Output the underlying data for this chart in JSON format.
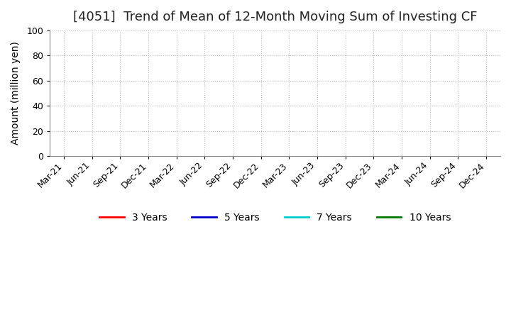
{
  "title": "[4051]  Trend of Mean of 12-Month Moving Sum of Investing CF",
  "ylabel": "Amount (million yen)",
  "ylim": [
    0,
    100
  ],
  "yticks": [
    0,
    20,
    40,
    60,
    80,
    100
  ],
  "background_color": "#ffffff",
  "plot_bg_color": "#ffffff",
  "grid_color": "#bbbbbb",
  "x_labels": [
    "Mar-21",
    "Jun-21",
    "Sep-21",
    "Dec-21",
    "Mar-22",
    "Jun-22",
    "Sep-22",
    "Dec-22",
    "Mar-23",
    "Jun-23",
    "Sep-23",
    "Dec-23",
    "Mar-24",
    "Jun-24",
    "Sep-24",
    "Dec-24"
  ],
  "legend_entries": [
    {
      "label": "3 Years",
      "color": "#ff0000"
    },
    {
      "label": "5 Years",
      "color": "#0000cc"
    },
    {
      "label": "7 Years",
      "color": "#00cccc"
    },
    {
      "label": "10 Years",
      "color": "#007700"
    }
  ],
  "title_fontsize": 13,
  "axis_label_fontsize": 10,
  "tick_fontsize": 9,
  "legend_fontsize": 10
}
